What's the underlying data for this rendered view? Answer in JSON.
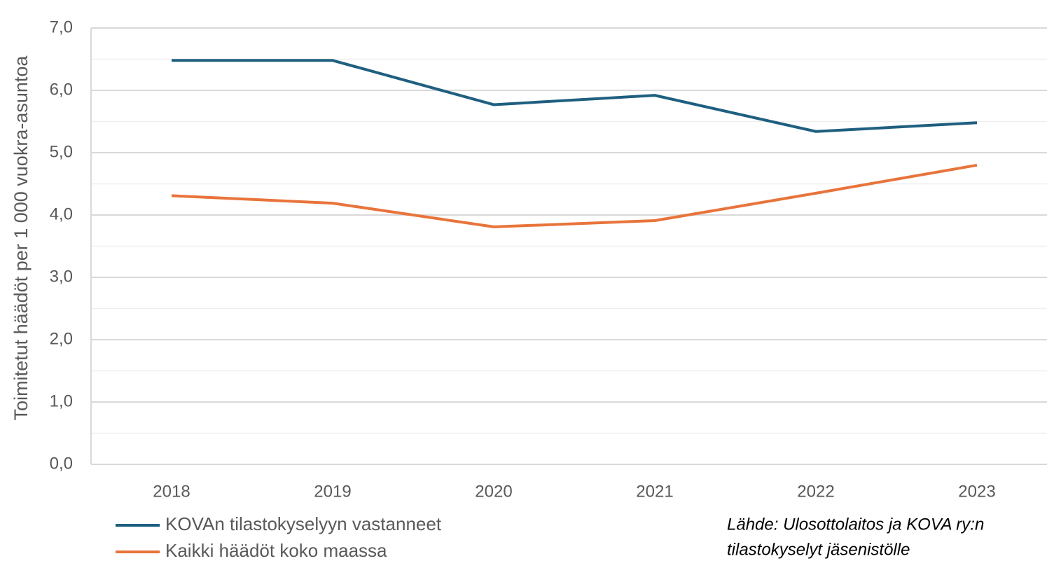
{
  "chart_data": {
    "type": "line",
    "ylabel": "Toimitetut häädöt per 1 000 vuokra-asuntoa",
    "categories": [
      "2018",
      "2019",
      "2020",
      "2021",
      "2022",
      "2023"
    ],
    "series": [
      {
        "name": "KOVAn tilastokyselyyn vastanneet",
        "color": "#1f5f80",
        "values": [
          6.48,
          6.48,
          5.77,
          5.92,
          5.34,
          5.48
        ]
      },
      {
        "name": "Kaikki häädöt koko maassa",
        "color": "#e8743b",
        "values": [
          4.31,
          4.19,
          3.81,
          3.91,
          4.35,
          4.8
        ]
      }
    ],
    "ylim": [
      0,
      7
    ],
    "yticks": [
      {
        "value": 0,
        "label": "0,0"
      },
      {
        "value": 1,
        "label": "1,0"
      },
      {
        "value": 2,
        "label": "2,0"
      },
      {
        "value": 3,
        "label": "3,0"
      },
      {
        "value": 4,
        "label": "4,0"
      },
      {
        "value": 5,
        "label": "5,0"
      },
      {
        "value": 6,
        "label": "6,0"
      },
      {
        "value": 7,
        "label": "7,0"
      }
    ],
    "yminorticks": [
      0.5,
      1.5,
      2.5,
      3.5,
      4.5,
      5.5,
      6.5
    ],
    "grid": true,
    "legend": "bottom",
    "source": [
      "Lähde: Ulosottolaitos ja KOVA ry:n",
      "tilastokyselyt jäsenistölle"
    ]
  }
}
